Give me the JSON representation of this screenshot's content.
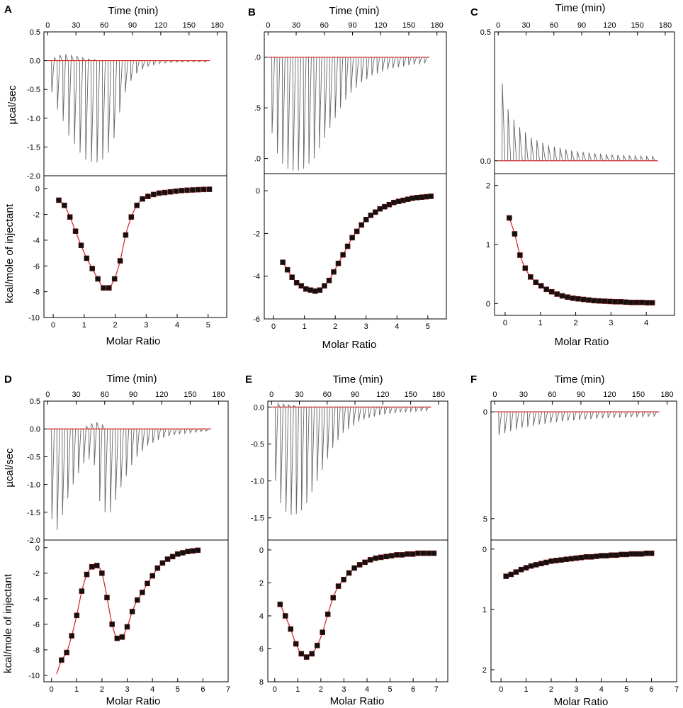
{
  "figure": {
    "top_axis_label": "Time (min)",
    "bottom_axis_label": "Molar Ratio",
    "upper_ylabel": "µcal/sec",
    "lower_ylabel": "kcal/mole of injectant",
    "colors": {
      "raw_trace": "#666666",
      "fit_line": "#d22020",
      "marker": "#111111",
      "frame": "#000000"
    }
  },
  "chart_data": [
    {
      "panel": "A",
      "type": "line",
      "time_ticks": [
        "0",
        "30",
        "60",
        "90",
        "120",
        "150",
        "180"
      ],
      "time_range": [
        -4,
        190
      ],
      "upper": {
        "ylabel": "µcal/sec",
        "ylim": [
          -2.0,
          0.5
        ],
        "ticks": [
          "0.5",
          "0.0",
          "-0.5",
          "-1.0",
          "-1.5",
          "-2.0"
        ],
        "tick_values": [
          0.5,
          0.0,
          -0.5,
          -1.0,
          -1.5,
          -2.0
        ],
        "baseline": 0.0,
        "shape": "exo",
        "peaks": [
          -0.55,
          -0.85,
          -1.05,
          -1.3,
          -1.45,
          -1.6,
          -1.72,
          -1.76,
          -1.77,
          -1.72,
          -1.6,
          -1.35,
          -0.9,
          -0.55,
          -0.35,
          -0.22,
          -0.15,
          -0.1,
          -0.07,
          -0.05,
          -0.04,
          -0.03,
          -0.03,
          -0.02,
          -0.02,
          -0.02,
          -0.02,
          -0.02
        ],
        "overshoot": [
          0.05,
          0.1,
          0.11,
          0.1,
          0.08,
          0.05,
          0.03,
          0.02,
          0,
          0,
          0,
          0,
          0,
          0,
          0,
          0,
          0,
          0,
          0,
          0,
          0,
          0,
          0,
          0,
          0,
          0,
          0,
          0
        ]
      },
      "lower": {
        "ylabel": "kcal/mole of injectant",
        "xlabel": "Molar Ratio",
        "xlim": [
          -0.3,
          5.6
        ],
        "xticks": [
          "0",
          "1",
          "2",
          "3",
          "4",
          "5"
        ],
        "xtick_values": [
          0,
          1,
          2,
          3,
          4,
          5
        ],
        "ylim": [
          -10,
          1
        ],
        "yticks": [
          "0",
          "-2",
          "-4",
          "-6",
          "-8",
          "-10"
        ],
        "ytick_values": [
          0,
          -2,
          -4,
          -6,
          -8,
          -10
        ],
        "x": [
          0.18,
          0.36,
          0.54,
          0.72,
          0.9,
          1.08,
          1.26,
          1.44,
          1.62,
          1.8,
          1.98,
          2.16,
          2.34,
          2.52,
          2.7,
          2.88,
          3.06,
          3.24,
          3.42,
          3.6,
          3.78,
          3.96,
          4.14,
          4.32,
          4.5,
          4.68,
          4.86,
          5.04
        ],
        "y": [
          -0.9,
          -1.3,
          -2.2,
          -3.3,
          -4.4,
          -5.4,
          -6.2,
          -7.0,
          -7.7,
          -7.7,
          -7.0,
          -5.6,
          -3.6,
          -2.2,
          -1.3,
          -0.8,
          -0.6,
          -0.45,
          -0.35,
          -0.3,
          -0.25,
          -0.2,
          -0.15,
          -0.12,
          -0.1,
          -0.08,
          -0.06,
          -0.05
        ]
      }
    },
    {
      "panel": "B",
      "type": "line",
      "time_ticks": [
        "0",
        "30",
        "60",
        "90",
        "120",
        "150",
        "180"
      ],
      "time_range": [
        -4,
        190
      ],
      "upper": {
        "ylabel": "",
        "ylim": [
          -1.15,
          0.25
        ],
        "ticks": [
          ".0",
          ".5",
          ".0"
        ],
        "tick_values": [
          0.0,
          -0.5,
          -1.0
        ],
        "baseline": 0.0,
        "shape": "exo",
        "peaks": [
          -0.75,
          -0.95,
          -1.05,
          -1.1,
          -1.12,
          -1.12,
          -1.1,
          -1.05,
          -1.0,
          -0.9,
          -0.8,
          -0.7,
          -0.6,
          -0.5,
          -0.42,
          -0.35,
          -0.3,
          -0.25,
          -0.22,
          -0.18,
          -0.16,
          -0.14,
          -0.12,
          -0.11,
          -0.1,
          -0.09,
          -0.08,
          -0.07,
          -0.07,
          -0.06
        ],
        "overshoot": []
      },
      "lower": {
        "ylabel": "",
        "xlabel": "Molar Ratio",
        "xlim": [
          -0.3,
          5.6
        ],
        "xticks": [
          "0",
          "1",
          "2",
          "3",
          "4",
          "5"
        ],
        "xtick_values": [
          0,
          1,
          2,
          3,
          4,
          5
        ],
        "ylim": [
          -6,
          0.8
        ],
        "yticks": [
          "0",
          "-2",
          "-4",
          "-6"
        ],
        "ytick_values": [
          0,
          -2,
          -4,
          -6
        ],
        "x": [
          0.3,
          0.45,
          0.6,
          0.75,
          0.9,
          1.05,
          1.2,
          1.35,
          1.5,
          1.65,
          1.8,
          1.95,
          2.1,
          2.25,
          2.4,
          2.55,
          2.7,
          2.85,
          3.0,
          3.15,
          3.3,
          3.45,
          3.6,
          3.75,
          3.9,
          4.05,
          4.2,
          4.35,
          4.5,
          4.65,
          4.8,
          4.95,
          5.1
        ],
        "y": [
          -3.35,
          -3.7,
          -4.05,
          -4.3,
          -4.45,
          -4.6,
          -4.65,
          -4.7,
          -4.65,
          -4.45,
          -4.2,
          -3.8,
          -3.4,
          -3.0,
          -2.6,
          -2.2,
          -1.9,
          -1.6,
          -1.35,
          -1.15,
          -1.0,
          -0.85,
          -0.75,
          -0.65,
          -0.55,
          -0.5,
          -0.45,
          -0.4,
          -0.35,
          -0.32,
          -0.3,
          -0.28,
          -0.26
        ]
      }
    },
    {
      "panel": "C",
      "type": "line",
      "time_ticks": [
        "0",
        "30",
        "60",
        "90",
        "120",
        "150",
        "180"
      ],
      "time_range": [
        -4,
        190
      ],
      "upper": {
        "ylabel": "",
        "ylim": [
          -0.05,
          0.5
        ],
        "ticks": [
          "0.5",
          "0.0"
        ],
        "tick_values": [
          0.5,
          0.0
        ],
        "baseline": 0.0,
        "shape": "endo",
        "peaks": [
          0.3,
          0.2,
          0.16,
          0.13,
          0.11,
          0.09,
          0.08,
          0.07,
          0.06,
          0.055,
          0.05,
          0.045,
          0.04,
          0.037,
          0.034,
          0.031,
          0.029,
          0.027,
          0.025,
          0.024,
          0.022,
          0.021,
          0.02,
          0.019,
          0.018,
          0.017,
          0.017
        ],
        "overshoot": []
      },
      "lower": {
        "ylabel": "",
        "xlabel": "Molar Ratio",
        "xlim": [
          -0.3,
          4.8
        ],
        "xticks": [
          "0",
          "1",
          "2",
          "3",
          "4"
        ],
        "xtick_values": [
          0,
          1,
          2,
          3,
          4
        ],
        "ylim": [
          -0.2,
          2.2
        ],
        "yticks": [
          "2",
          "1",
          "0"
        ],
        "ytick_values": [
          2,
          1,
          0
        ],
        "x": [
          0.12,
          0.27,
          0.42,
          0.57,
          0.72,
          0.87,
          1.02,
          1.17,
          1.32,
          1.47,
          1.62,
          1.77,
          1.92,
          2.07,
          2.22,
          2.37,
          2.52,
          2.67,
          2.82,
          2.97,
          3.12,
          3.27,
          3.42,
          3.57,
          3.72,
          3.87,
          4.02,
          4.17
        ],
        "y": [
          1.45,
          1.18,
          0.82,
          0.6,
          0.45,
          0.36,
          0.3,
          0.24,
          0.2,
          0.16,
          0.13,
          0.11,
          0.09,
          0.08,
          0.07,
          0.06,
          0.05,
          0.045,
          0.04,
          0.035,
          0.03,
          0.03,
          0.025,
          0.02,
          0.02,
          0.02,
          0.015,
          0.015
        ]
      }
    },
    {
      "panel": "D",
      "type": "line",
      "time_ticks": [
        "0",
        "30",
        "60",
        "90",
        "120",
        "150",
        "180"
      ],
      "time_range": [
        -4,
        190
      ],
      "upper": {
        "ylabel": "µcal/sec",
        "ylim": [
          -2.0,
          0.5
        ],
        "ticks": [
          "0.5",
          "0.0",
          "-0.5",
          "-1.0",
          "-1.5",
          "-2.0"
        ],
        "tick_values": [
          0.5,
          0.0,
          -0.5,
          -1.0,
          -1.5,
          -2.0
        ],
        "baseline": 0.0,
        "shape": "exo",
        "peaks": [
          -1.62,
          -1.82,
          -1.55,
          -1.25,
          -1.0,
          -0.8,
          -0.62,
          -0.55,
          -0.65,
          -1.3,
          -1.5,
          -1.5,
          -1.28,
          -1.05,
          -0.85,
          -0.65,
          -0.5,
          -0.4,
          -0.3,
          -0.25,
          -0.2,
          -0.16,
          -0.13,
          -0.11,
          -0.09,
          -0.08,
          -0.07,
          -0.06,
          -0.05,
          -0.04
        ],
        "overshoot": [
          0,
          0,
          0,
          0,
          0,
          0,
          0.05,
          0.1,
          0.12,
          0.08,
          0,
          0,
          0,
          0,
          0,
          0,
          0,
          0,
          0,
          0,
          0,
          0,
          0,
          0,
          0,
          0,
          0,
          0,
          0,
          0
        ]
      },
      "lower": {
        "ylabel": "kcal/mole of injectant",
        "xlabel": "Molar Ratio",
        "xlim": [
          -0.3,
          7.0
        ],
        "xticks": [
          "0",
          "1",
          "2",
          "3",
          "4",
          "5",
          "6",
          "7"
        ],
        "xtick_values": [
          0,
          1,
          2,
          3,
          4,
          5,
          6,
          7
        ],
        "ylim": [
          -10.5,
          0.6
        ],
        "yticks": [
          "0",
          "-2",
          "-4",
          "-6",
          "-8",
          "-10"
        ],
        "ytick_values": [
          0,
          -2,
          -4,
          -6,
          -8,
          -10
        ],
        "x": [
          0.4,
          0.6,
          0.8,
          1.0,
          1.2,
          1.4,
          1.6,
          1.8,
          2.0,
          2.2,
          2.4,
          2.6,
          2.8,
          3.0,
          3.2,
          3.4,
          3.6,
          3.8,
          4.0,
          4.2,
          4.4,
          4.6,
          4.8,
          5.0,
          5.2,
          5.4,
          5.6,
          5.8
        ],
        "y": [
          -8.8,
          -8.2,
          -6.9,
          -5.3,
          -3.4,
          -2.1,
          -1.5,
          -1.4,
          -2.0,
          -3.9,
          -6.0,
          -7.1,
          -7.0,
          -6.2,
          -5.0,
          -4.1,
          -3.5,
          -2.8,
          -2.2,
          -1.6,
          -1.2,
          -0.9,
          -0.7,
          -0.5,
          -0.4,
          -0.3,
          -0.25,
          -0.2
        ],
        "fit_start": [
          0.2,
          -9.9
        ]
      }
    },
    {
      "panel": "E",
      "type": "line",
      "time_ticks": [
        "0",
        "30",
        "60",
        "90",
        "120",
        "150",
        "180"
      ],
      "time_range": [
        -4,
        190
      ],
      "upper": {
        "ylabel": "",
        "ylim": [
          -1.8,
          0.08
        ],
        "ticks": [
          "0.0",
          "-0.5",
          "-1.0",
          "-1.5"
        ],
        "tick_values": [
          0.0,
          -0.5,
          -1.0,
          -1.5
        ],
        "baseline": 0.0,
        "shape": "exo",
        "peaks": [
          -1.0,
          -1.3,
          -1.42,
          -1.46,
          -1.45,
          -1.4,
          -1.3,
          -1.15,
          -1.0,
          -0.85,
          -0.7,
          -0.55,
          -0.45,
          -0.35,
          -0.3,
          -0.25,
          -0.2,
          -0.17,
          -0.15,
          -0.13,
          -0.11,
          -0.1,
          -0.09,
          -0.08,
          -0.07,
          -0.07,
          -0.06,
          -0.06,
          -0.05,
          -0.05
        ],
        "overshoot": [
          0.05,
          0.04,
          0.03,
          0.02,
          0,
          0,
          0,
          0,
          0,
          0,
          0,
          0,
          0,
          0,
          0,
          0,
          0,
          0,
          0,
          0,
          0,
          0,
          0,
          0,
          0,
          0,
          0,
          0,
          0,
          0
        ]
      },
      "lower": {
        "ylabel": "",
        "xlabel": "Molar Ratio",
        "xlim": [
          -0.3,
          7.5
        ],
        "xticks": [
          "0",
          "1",
          "2",
          "3",
          "4",
          "5",
          "6",
          "7"
        ],
        "xtick_values": [
          0,
          1,
          2,
          3,
          4,
          5,
          6,
          7
        ],
        "ylim": [
          8,
          -0.6
        ],
        "yticks": [
          "0",
          "2",
          "4",
          "6",
          "8"
        ],
        "ytick_values": [
          0,
          2,
          4,
          6,
          8
        ],
        "x": [
          0.23,
          0.46,
          0.69,
          0.92,
          1.15,
          1.38,
          1.61,
          1.84,
          2.07,
          2.3,
          2.53,
          2.76,
          2.99,
          3.22,
          3.45,
          3.68,
          3.91,
          4.14,
          4.37,
          4.6,
          4.83,
          5.06,
          5.29,
          5.52,
          5.75,
          5.98,
          6.21,
          6.44,
          6.67,
          6.9
        ],
        "y": [
          3.3,
          4.0,
          4.8,
          5.7,
          6.3,
          6.5,
          6.3,
          5.8,
          5.0,
          3.9,
          2.9,
          2.2,
          1.8,
          1.4,
          1.1,
          0.9,
          0.75,
          0.6,
          0.5,
          0.45,
          0.4,
          0.35,
          0.3,
          0.3,
          0.25,
          0.25,
          0.2,
          0.2,
          0.2,
          0.2
        ]
      }
    },
    {
      "panel": "F",
      "type": "line",
      "time_ticks": [
        "0",
        "30",
        "60",
        "90",
        "120",
        "150",
        "180"
      ],
      "time_range": [
        -4,
        190
      ],
      "upper": {
        "ylabel": "",
        "ylim": [
          6.0,
          -0.5
        ],
        "ticks": [
          "0",
          "5"
        ],
        "tick_values": [
          0,
          5
        ],
        "baseline": 0.0,
        "shape": "exo",
        "peaks": [
          1.1,
          1.0,
          0.9,
          0.82,
          0.75,
          0.7,
          0.65,
          0.6,
          0.56,
          0.52,
          0.48,
          0.45,
          0.42,
          0.4,
          0.38,
          0.36,
          0.34,
          0.32,
          0.3,
          0.29,
          0.28,
          0.27,
          0.26,
          0.25,
          0.24,
          0.23,
          0.22,
          0.21
        ],
        "overshoot": []
      },
      "lower": {
        "ylabel": "",
        "xlabel": "Molar Ratio",
        "xlim": [
          -0.4,
          7.0
        ],
        "xticks": [
          "0",
          "1",
          "2",
          "3",
          "4",
          "5",
          "6",
          "7"
        ],
        "xtick_values": [
          0,
          1,
          2,
          3,
          4,
          5,
          6,
          7
        ],
        "ylim": [
          2.2,
          -0.15
        ],
        "yticks": [
          "0",
          "1",
          "2"
        ],
        "ytick_values": [
          0,
          1,
          2
        ],
        "x": [
          0.2,
          0.4,
          0.6,
          0.8,
          1.0,
          1.2,
          1.4,
          1.6,
          1.8,
          2.0,
          2.2,
          2.4,
          2.6,
          2.8,
          3.0,
          3.2,
          3.4,
          3.6,
          3.8,
          4.0,
          4.2,
          4.4,
          4.6,
          4.8,
          5.0,
          5.2,
          5.4,
          5.6,
          5.8,
          6.0
        ],
        "y": [
          0.45,
          0.42,
          0.38,
          0.34,
          0.31,
          0.28,
          0.26,
          0.24,
          0.22,
          0.2,
          0.19,
          0.18,
          0.17,
          0.16,
          0.15,
          0.14,
          0.13,
          0.13,
          0.12,
          0.11,
          0.11,
          0.1,
          0.1,
          0.09,
          0.09,
          0.08,
          0.08,
          0.08,
          0.07,
          0.07
        ]
      }
    }
  ]
}
